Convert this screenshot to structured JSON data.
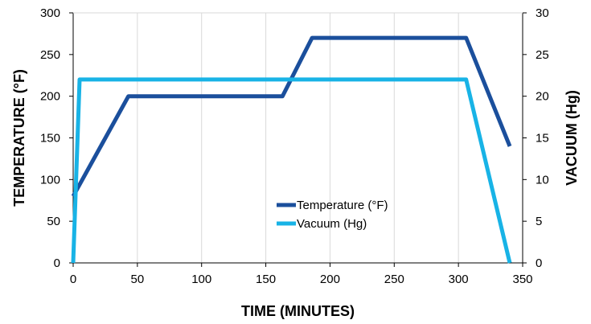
{
  "chart_data": {
    "type": "line",
    "xlabel": "TIME (MINUTES)",
    "ylabel_left": "TEMPERATURE (°F)",
    "ylabel_right": "VACUUM (Hg)",
    "x_ticks": [
      0,
      50,
      100,
      150,
      200,
      250,
      300,
      350
    ],
    "y_ticks_left": [
      0,
      50,
      100,
      150,
      200,
      250,
      300
    ],
    "y_ticks_right": [
      0,
      5,
      10,
      15,
      20,
      25,
      30
    ],
    "xlim": [
      0,
      350
    ],
    "ylim_left": [
      0,
      300
    ],
    "ylim_right": [
      0,
      30
    ],
    "grid": {
      "x": true,
      "y": false
    },
    "legend_position": "center",
    "series": [
      {
        "name": "Temperature (°F)",
        "axis": "left",
        "color": "#1b4f9c",
        "x": [
          0,
          43,
          163,
          186,
          306,
          340
        ],
        "y": [
          80,
          200,
          200,
          270,
          270,
          140
        ]
      },
      {
        "name": "Vacuum (Hg)",
        "axis": "right",
        "color": "#18b3e6",
        "x": [
          0,
          5,
          306,
          340
        ],
        "y": [
          0,
          22,
          22,
          0
        ]
      }
    ]
  }
}
